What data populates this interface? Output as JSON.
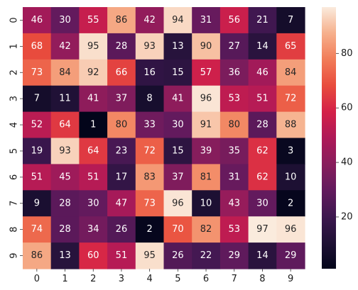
{
  "chart_data": {
    "type": "heatmap",
    "title": "",
    "xlabel": "",
    "ylabel": "",
    "x_categories": [
      "0",
      "1",
      "2",
      "3",
      "4",
      "5",
      "6",
      "7",
      "8",
      "9"
    ],
    "y_categories": [
      "0",
      "1",
      "2",
      "3",
      "4",
      "5",
      "6",
      "7",
      "8",
      "9"
    ],
    "values": [
      [
        46,
        30,
        55,
        86,
        42,
        94,
        31,
        56,
        21,
        7
      ],
      [
        68,
        42,
        95,
        28,
        93,
        13,
        90,
        27,
        14,
        65
      ],
      [
        73,
        84,
        92,
        66,
        16,
        15,
        57,
        36,
        46,
        84
      ],
      [
        7,
        11,
        41,
        37,
        8,
        41,
        96,
        53,
        51,
        72
      ],
      [
        52,
        64,
        1,
        80,
        33,
        30,
        91,
        80,
        28,
        88
      ],
      [
        19,
        93,
        64,
        23,
        72,
        15,
        39,
        35,
        62,
        3
      ],
      [
        51,
        45,
        51,
        17,
        83,
        37,
        81,
        31,
        62,
        10
      ],
      [
        9,
        28,
        30,
        47,
        73,
        96,
        10,
        43,
        30,
        2
      ],
      [
        74,
        28,
        34,
        26,
        2,
        70,
        82,
        53,
        97,
        96
      ],
      [
        86,
        13,
        60,
        51,
        95,
        26,
        22,
        29,
        14,
        29
      ]
    ],
    "value_range": [
      1,
      97
    ],
    "colormap": "rocket",
    "colorbar": {
      "ticks": [
        "20",
        "40",
        "60",
        "80"
      ],
      "tick_values": [
        20,
        40,
        60,
        80
      ]
    },
    "grid": false,
    "legend": "colorbar-right"
  }
}
